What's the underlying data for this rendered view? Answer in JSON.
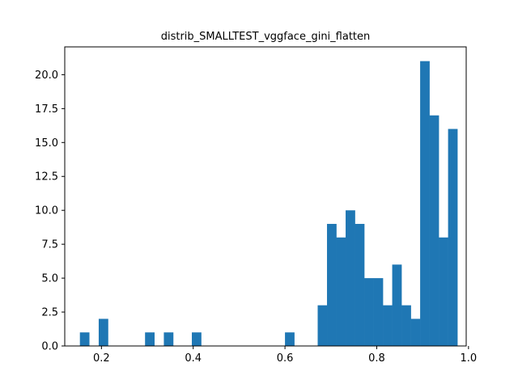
{
  "chart_data": {
    "type": "bar",
    "title": "distrib_SMALLTEST_vggface_gini_flatten",
    "xlabel": "",
    "ylabel": "",
    "bar_color": "#1f77b4",
    "grid": false,
    "xlim": [
      0.12,
      0.995
    ],
    "ylim": [
      0,
      22.05
    ],
    "bin_width": 0.0203,
    "bins": [
      {
        "x": 0.153,
        "count": 1
      },
      {
        "x": 0.194,
        "count": 2
      },
      {
        "x": 0.295,
        "count": 1
      },
      {
        "x": 0.336,
        "count": 1
      },
      {
        "x": 0.397,
        "count": 1
      },
      {
        "x": 0.6,
        "count": 1
      },
      {
        "x": 0.6713,
        "count": 3
      },
      {
        "x": 0.6916,
        "count": 9
      },
      {
        "x": 0.7119,
        "count": 8
      },
      {
        "x": 0.7322,
        "count": 10
      },
      {
        "x": 0.7525,
        "count": 9
      },
      {
        "x": 0.7728,
        "count": 5
      },
      {
        "x": 0.7931,
        "count": 5
      },
      {
        "x": 0.8134,
        "count": 3
      },
      {
        "x": 0.8337,
        "count": 6
      },
      {
        "x": 0.854,
        "count": 3
      },
      {
        "x": 0.8743,
        "count": 2
      },
      {
        "x": 0.8946,
        "count": 21
      },
      {
        "x": 0.9149,
        "count": 17
      },
      {
        "x": 0.9352,
        "count": 8
      },
      {
        "x": 0.9555,
        "count": 16
      }
    ],
    "x_ticks": [
      0.2,
      0.4,
      0.6,
      0.8,
      1.0
    ],
    "x_tick_labels": [
      "0.2",
      "0.4",
      "0.6",
      "0.8",
      "1.0"
    ],
    "y_ticks": [
      0,
      2.5,
      5,
      7.5,
      10,
      12.5,
      15,
      17.5,
      20
    ],
    "y_tick_labels": [
      "0.0",
      "2.5",
      "5.0",
      "7.5",
      "10.0",
      "12.5",
      "15.0",
      "17.5",
      "20.0"
    ]
  }
}
